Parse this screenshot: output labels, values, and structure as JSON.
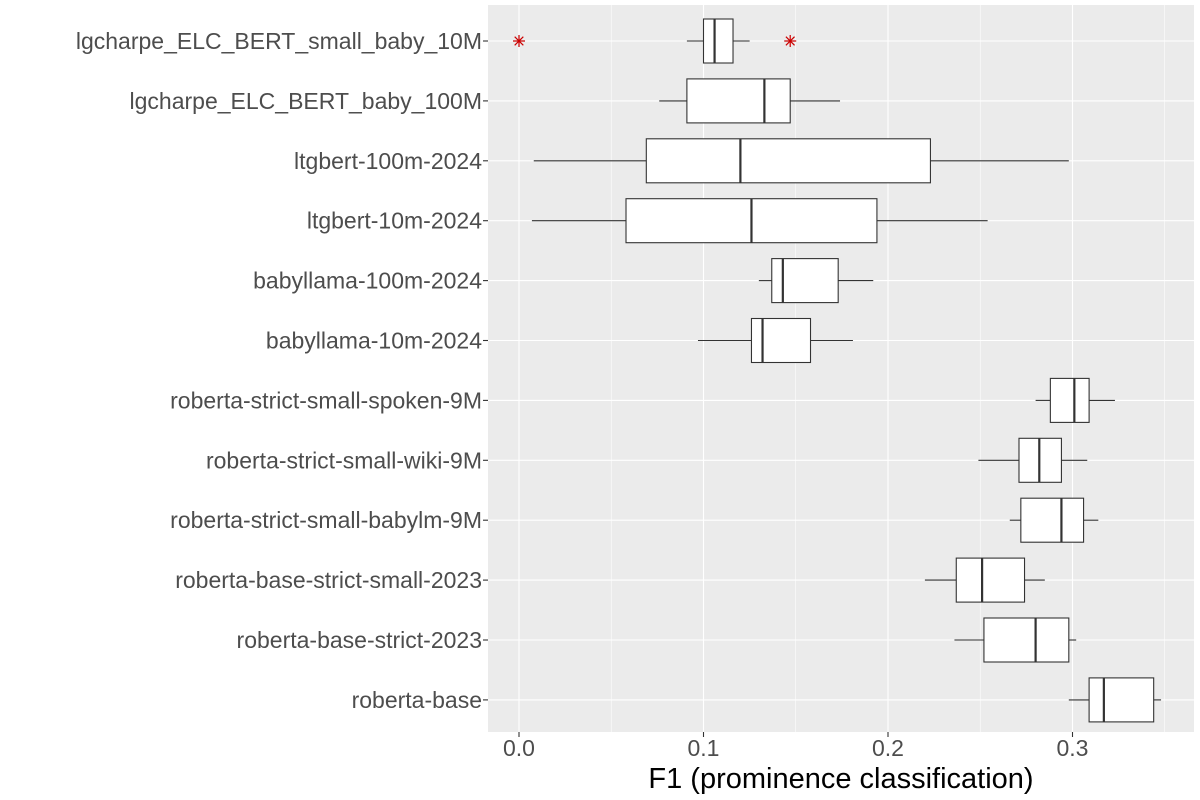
{
  "chart_data": {
    "type": "boxplot",
    "orientation": "horizontal",
    "xlabel": "F1 (prominence classification)",
    "ylabel": "",
    "xlim": [
      -0.015,
      0.365
    ],
    "xticks": [
      0.0,
      0.1,
      0.2,
      0.3
    ],
    "xtick_labels": [
      "0.0",
      "0.1",
      "0.2",
      "0.3"
    ],
    "grid": true,
    "outlier_color": "#cc0000",
    "categories": [
      "lgcharpe_ELC_BERT_small_baby_10M",
      "lgcharpe_ELC_BERT_baby_100M",
      "ltgbert-100m-2024",
      "ltgbert-10m-2024",
      "babyllama-100m-2024",
      "babyllama-10m-2024",
      "roberta-strict-small-spoken-9M",
      "roberta-strict-small-wiki-9M",
      "roberta-strict-small-babylm-9M",
      "roberta-base-strict-small-2023",
      "roberta-base-strict-2023",
      "roberta-base"
    ],
    "boxes": [
      {
        "min": 0.091,
        "q1": 0.1,
        "median": 0.106,
        "q3": 0.116,
        "max": 0.125,
        "outliers": [
          0.0,
          0.147
        ]
      },
      {
        "min": 0.076,
        "q1": 0.091,
        "median": 0.133,
        "q3": 0.147,
        "max": 0.174,
        "outliers": []
      },
      {
        "min": 0.008,
        "q1": 0.069,
        "median": 0.12,
        "q3": 0.223,
        "max": 0.298,
        "outliers": []
      },
      {
        "min": 0.007,
        "q1": 0.058,
        "median": 0.126,
        "q3": 0.194,
        "max": 0.254,
        "outliers": []
      },
      {
        "min": 0.13,
        "q1": 0.137,
        "median": 0.143,
        "q3": 0.173,
        "max": 0.192,
        "outliers": []
      },
      {
        "min": 0.097,
        "q1": 0.126,
        "median": 0.132,
        "q3": 0.158,
        "max": 0.181,
        "outliers": []
      },
      {
        "min": 0.28,
        "q1": 0.288,
        "median": 0.301,
        "q3": 0.309,
        "max": 0.323,
        "outliers": []
      },
      {
        "min": 0.249,
        "q1": 0.271,
        "median": 0.282,
        "q3": 0.294,
        "max": 0.308,
        "outliers": []
      },
      {
        "min": 0.266,
        "q1": 0.272,
        "median": 0.294,
        "q3": 0.306,
        "max": 0.314,
        "outliers": []
      },
      {
        "min": 0.22,
        "q1": 0.237,
        "median": 0.251,
        "q3": 0.274,
        "max": 0.285,
        "outliers": []
      },
      {
        "min": 0.236,
        "q1": 0.252,
        "median": 0.28,
        "q3": 0.298,
        "max": 0.302,
        "outliers": []
      },
      {
        "min": 0.298,
        "q1": 0.309,
        "median": 0.317,
        "q3": 0.344,
        "max": 0.348,
        "outliers": []
      }
    ]
  }
}
